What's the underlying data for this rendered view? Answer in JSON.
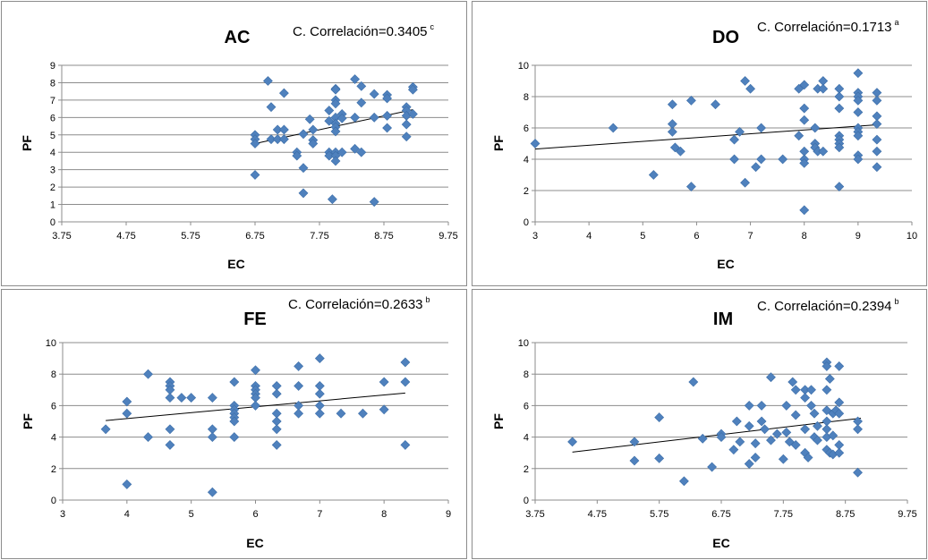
{
  "chart_data": [
    {
      "type": "scatter",
      "title": "AC",
      "annotation": "C. Correlación=0.3405",
      "annotation_sup": "c",
      "xlabel": "EC",
      "ylabel": "PF",
      "xlim": [
        3.75,
        9.75
      ],
      "ylim": [
        0,
        9
      ],
      "xticks": [
        "3.75",
        "4.75",
        "5.75",
        "6.75",
        "7.75",
        "8.75",
        "9.75"
      ],
      "yticks": [
        "0",
        "1",
        "2",
        "3",
        "4",
        "5",
        "6",
        "7",
        "8",
        "9"
      ],
      "grid": true,
      "trendline": [
        [
          6.75,
          4.5
        ],
        [
          9.2,
          6.45
        ]
      ],
      "points": [
        [
          6.75,
          5.0
        ],
        [
          6.75,
          4.75
        ],
        [
          6.75,
          4.5
        ],
        [
          6.75,
          2.7
        ],
        [
          6.95,
          8.1
        ],
        [
          7.0,
          6.6
        ],
        [
          7.0,
          4.75
        ],
        [
          7.1,
          5.3
        ],
        [
          7.1,
          4.75
        ],
        [
          7.2,
          7.4
        ],
        [
          7.2,
          5.3
        ],
        [
          7.2,
          4.75
        ],
        [
          7.4,
          4.0
        ],
        [
          7.4,
          3.8
        ],
        [
          7.5,
          5.05
        ],
        [
          7.5,
          3.1
        ],
        [
          7.5,
          1.65
        ],
        [
          7.6,
          5.9
        ],
        [
          7.65,
          5.3
        ],
        [
          7.65,
          4.7
        ],
        [
          7.65,
          4.5
        ],
        [
          7.9,
          6.4
        ],
        [
          7.9,
          5.8
        ],
        [
          7.9,
          4.0
        ],
        [
          7.9,
          3.8
        ],
        [
          7.95,
          1.3
        ],
        [
          8.0,
          7.65
        ],
        [
          8.0,
          7.6
        ],
        [
          8.0,
          7.0
        ],
        [
          8.0,
          6.8
        ],
        [
          8.0,
          6.0
        ],
        [
          8.0,
          5.65
        ],
        [
          8.0,
          5.45
        ],
        [
          8.0,
          5.2
        ],
        [
          8.0,
          4.0
        ],
        [
          8.0,
          3.8
        ],
        [
          8.0,
          3.5
        ],
        [
          8.1,
          6.2
        ],
        [
          8.1,
          5.95
        ],
        [
          8.1,
          4.0
        ],
        [
          8.3,
          8.2
        ],
        [
          8.3,
          6.0
        ],
        [
          8.3,
          4.2
        ],
        [
          8.4,
          7.8
        ],
        [
          8.4,
          6.85
        ],
        [
          8.4,
          4.0
        ],
        [
          8.6,
          7.35
        ],
        [
          8.6,
          6.0
        ],
        [
          8.6,
          1.15
        ],
        [
          8.8,
          7.3
        ],
        [
          8.8,
          7.1
        ],
        [
          8.8,
          6.1
        ],
        [
          8.8,
          5.4
        ],
        [
          9.1,
          6.6
        ],
        [
          9.1,
          6.4
        ],
        [
          9.1,
          6.1
        ],
        [
          9.1,
          4.9
        ],
        [
          9.1,
          5.6
        ],
        [
          9.2,
          7.75
        ],
        [
          9.2,
          7.6
        ],
        [
          9.2,
          6.2
        ]
      ]
    },
    {
      "type": "scatter",
      "title": "DO",
      "annotation": "C. Correlación=0.1713",
      "annotation_sup": "a",
      "xlabel": "EC",
      "ylabel": "PF",
      "xlim": [
        3,
        10
      ],
      "ylim": [
        0,
        10
      ],
      "xticks": [
        "3",
        "4",
        "5",
        "6",
        "7",
        "8",
        "9",
        "10"
      ],
      "yticks": [
        "0",
        "2",
        "4",
        "6",
        "8",
        "10"
      ],
      "grid": true,
      "trendline": [
        [
          3,
          4.65
        ],
        [
          9.35,
          6.2
        ]
      ],
      "points": [
        [
          3.0,
          5.0
        ],
        [
          4.45,
          6.0
        ],
        [
          5.2,
          3.0
        ],
        [
          5.55,
          7.5
        ],
        [
          5.55,
          6.25
        ],
        [
          5.55,
          5.75
        ],
        [
          5.6,
          4.75
        ],
        [
          5.7,
          4.5
        ],
        [
          5.9,
          7.75
        ],
        [
          5.9,
          2.25
        ],
        [
          6.35,
          7.5
        ],
        [
          6.7,
          5.25
        ],
        [
          6.7,
          4.0
        ],
        [
          6.8,
          5.75
        ],
        [
          6.9,
          9.0
        ],
        [
          6.9,
          2.5
        ],
        [
          7.0,
          8.5
        ],
        [
          7.1,
          3.5
        ],
        [
          7.2,
          6.0
        ],
        [
          7.2,
          4.0
        ],
        [
          7.6,
          4.0
        ],
        [
          7.9,
          8.5
        ],
        [
          7.9,
          5.5
        ],
        [
          8.0,
          8.75
        ],
        [
          8.0,
          7.25
        ],
        [
          8.0,
          6.5
        ],
        [
          8.0,
          4.5
        ],
        [
          8.0,
          4.0
        ],
        [
          8.0,
          3.75
        ],
        [
          8.0,
          0.75
        ],
        [
          8.2,
          6.0
        ],
        [
          8.2,
          5.0
        ],
        [
          8.2,
          4.75
        ],
        [
          8.25,
          8.5
        ],
        [
          8.25,
          4.5
        ],
        [
          8.35,
          9.0
        ],
        [
          8.35,
          8.5
        ],
        [
          8.35,
          4.5
        ],
        [
          8.65,
          8.5
        ],
        [
          8.65,
          8.0
        ],
        [
          8.65,
          7.25
        ],
        [
          8.65,
          5.5
        ],
        [
          8.65,
          5.25
        ],
        [
          8.65,
          5.0
        ],
        [
          8.65,
          4.75
        ],
        [
          8.65,
          2.25
        ],
        [
          9.0,
          9.5
        ],
        [
          9.0,
          8.25
        ],
        [
          9.0,
          8.0
        ],
        [
          9.0,
          7.75
        ],
        [
          9.0,
          7.0
        ],
        [
          9.0,
          6.0
        ],
        [
          9.0,
          5.75
        ],
        [
          9.0,
          5.5
        ],
        [
          9.0,
          4.25
        ],
        [
          9.0,
          4.0
        ],
        [
          9.35,
          8.25
        ],
        [
          9.35,
          7.75
        ],
        [
          9.35,
          6.75
        ],
        [
          9.35,
          6.25
        ],
        [
          9.35,
          5.25
        ],
        [
          9.35,
          4.5
        ],
        [
          9.35,
          3.5
        ]
      ]
    },
    {
      "type": "scatter",
      "title": "FE",
      "annotation": "C. Correlación=0.2633",
      "annotation_sup": "b",
      "xlabel": "EC",
      "ylabel": "PF",
      "xlim": [
        3,
        9
      ],
      "ylim": [
        0,
        10
      ],
      "xticks": [
        "3",
        "4",
        "5",
        "6",
        "7",
        "8",
        "9"
      ],
      "yticks": [
        "0",
        "2",
        "4",
        "6",
        "8",
        "10"
      ],
      "grid": true,
      "trendline": [
        [
          3.67,
          5.05
        ],
        [
          8.33,
          6.8
        ]
      ],
      "points": [
        [
          3.67,
          4.5
        ],
        [
          4.0,
          6.25
        ],
        [
          4.0,
          5.5
        ],
        [
          4.0,
          1.0
        ],
        [
          4.33,
          8.0
        ],
        [
          4.33,
          4.0
        ],
        [
          4.67,
          7.5
        ],
        [
          4.67,
          7.25
        ],
        [
          4.67,
          7.0
        ],
        [
          4.67,
          6.5
        ],
        [
          4.67,
          4.5
        ],
        [
          4.67,
          3.5
        ],
        [
          4.85,
          6.5
        ],
        [
          5.0,
          6.5
        ],
        [
          5.33,
          6.5
        ],
        [
          5.33,
          4.5
        ],
        [
          5.33,
          4.0
        ],
        [
          5.33,
          0.5
        ],
        [
          5.67,
          7.5
        ],
        [
          5.67,
          6.0
        ],
        [
          5.67,
          5.75
        ],
        [
          5.67,
          5.5
        ],
        [
          5.67,
          5.25
        ],
        [
          5.67,
          5.0
        ],
        [
          5.67,
          4.0
        ],
        [
          6.0,
          8.25
        ],
        [
          6.0,
          7.25
        ],
        [
          6.0,
          7.0
        ],
        [
          6.0,
          6.75
        ],
        [
          6.0,
          6.5
        ],
        [
          6.0,
          6.0
        ],
        [
          6.33,
          7.25
        ],
        [
          6.33,
          6.75
        ],
        [
          6.33,
          5.5
        ],
        [
          6.33,
          5.0
        ],
        [
          6.33,
          4.5
        ],
        [
          6.33,
          3.5
        ],
        [
          6.67,
          8.5
        ],
        [
          6.67,
          7.25
        ],
        [
          6.67,
          6.0
        ],
        [
          6.67,
          5.5
        ],
        [
          7.0,
          9.0
        ],
        [
          7.0,
          7.25
        ],
        [
          7.0,
          6.75
        ],
        [
          7.0,
          6.0
        ],
        [
          7.0,
          5.5
        ],
        [
          7.33,
          5.5
        ],
        [
          7.67,
          5.5
        ],
        [
          8.0,
          7.5
        ],
        [
          8.0,
          5.75
        ],
        [
          8.33,
          8.75
        ],
        [
          8.33,
          7.5
        ],
        [
          8.33,
          3.5
        ]
      ]
    },
    {
      "type": "scatter",
      "title": "IM",
      "annotation": "C. Correlación=0.2394",
      "annotation_sup": "b",
      "xlabel": "EC",
      "ylabel": "PF",
      "xlim": [
        3.75,
        9.75
      ],
      "ylim": [
        0,
        10
      ],
      "xticks": [
        "3.75",
        "4.75",
        "5.75",
        "6.75",
        "7.75",
        "8.75",
        "9.75"
      ],
      "yticks": [
        "0",
        "2",
        "4",
        "6",
        "8",
        "10"
      ],
      "grid": true,
      "trendline": [
        [
          4.35,
          3.05
        ],
        [
          9.0,
          5.2
        ]
      ],
      "points": [
        [
          4.35,
          3.7
        ],
        [
          5.35,
          3.7
        ],
        [
          5.35,
          2.5
        ],
        [
          5.75,
          5.25
        ],
        [
          5.75,
          2.65
        ],
        [
          6.15,
          1.2
        ],
        [
          6.3,
          7.5
        ],
        [
          6.45,
          3.9
        ],
        [
          6.6,
          2.1
        ],
        [
          6.75,
          4.2
        ],
        [
          6.75,
          4.0
        ],
        [
          6.95,
          3.2
        ],
        [
          7.0,
          5.0
        ],
        [
          7.05,
          3.7
        ],
        [
          7.2,
          6.0
        ],
        [
          7.2,
          4.7
        ],
        [
          7.2,
          2.3
        ],
        [
          7.3,
          3.6
        ],
        [
          7.3,
          2.7
        ],
        [
          7.4,
          6.0
        ],
        [
          7.4,
          5.0
        ],
        [
          7.45,
          4.5
        ],
        [
          7.55,
          7.8
        ],
        [
          7.55,
          3.8
        ],
        [
          7.65,
          4.2
        ],
        [
          7.75,
          2.6
        ],
        [
          7.8,
          6.0
        ],
        [
          7.8,
          4.3
        ],
        [
          7.85,
          3.7
        ],
        [
          7.9,
          7.5
        ],
        [
          7.95,
          7.0
        ],
        [
          7.95,
          5.4
        ],
        [
          7.95,
          3.5
        ],
        [
          8.1,
          7.0
        ],
        [
          8.1,
          6.5
        ],
        [
          8.1,
          4.5
        ],
        [
          8.1,
          3.0
        ],
        [
          8.15,
          2.7
        ],
        [
          8.2,
          7.0
        ],
        [
          8.2,
          6.0
        ],
        [
          8.25,
          5.5
        ],
        [
          8.25,
          4.0
        ],
        [
          8.3,
          4.7
        ],
        [
          8.3,
          3.8
        ],
        [
          8.45,
          8.75
        ],
        [
          8.45,
          8.5
        ],
        [
          8.45,
          7.0
        ],
        [
          8.45,
          5.7
        ],
        [
          8.45,
          5.0
        ],
        [
          8.45,
          4.5
        ],
        [
          8.45,
          4.0
        ],
        [
          8.45,
          3.2
        ],
        [
          8.5,
          7.7
        ],
        [
          8.5,
          3.0
        ],
        [
          8.55,
          5.5
        ],
        [
          8.55,
          4.1
        ],
        [
          8.55,
          2.9
        ],
        [
          8.6,
          5.7
        ],
        [
          8.65,
          8.5
        ],
        [
          8.65,
          6.2
        ],
        [
          8.65,
          5.5
        ],
        [
          8.65,
          3.5
        ],
        [
          8.65,
          3.0
        ],
        [
          8.95,
          5.0
        ],
        [
          8.95,
          4.5
        ],
        [
          8.95,
          1.75
        ]
      ]
    }
  ],
  "point_color": "#4f81bd"
}
